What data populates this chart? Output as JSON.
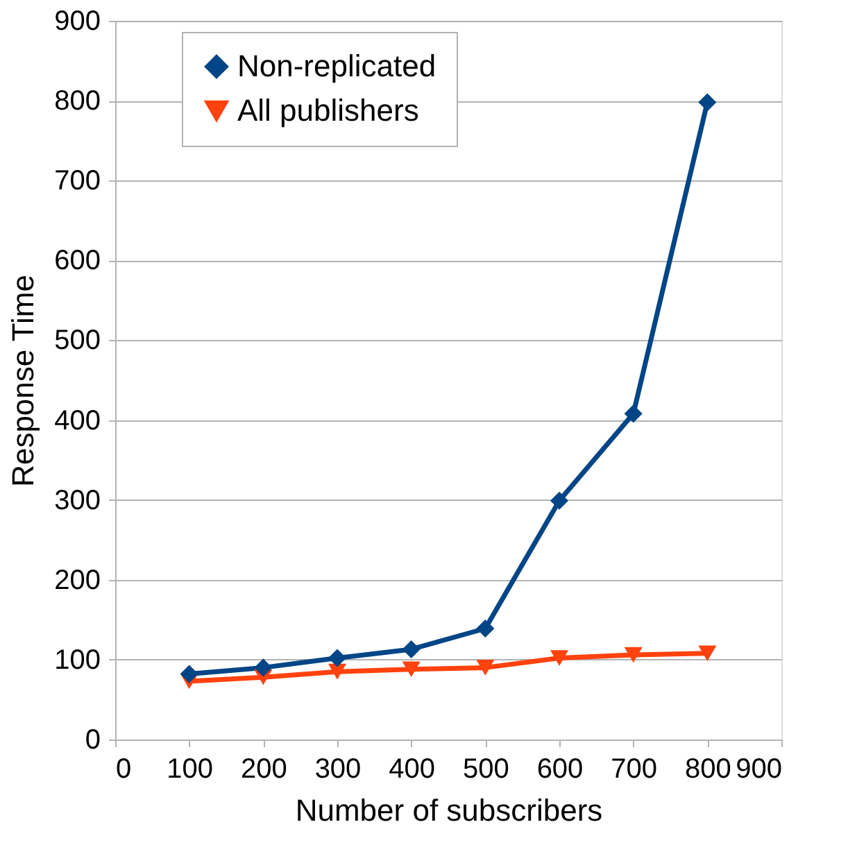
{
  "chart_data": {
    "type": "line",
    "xlabel": "Number of subscribers",
    "ylabel": "Response Time",
    "x": [
      100,
      200,
      300,
      400,
      500,
      600,
      700,
      800
    ],
    "series": [
      {
        "name": "Non-replicated",
        "color": "#004586",
        "marker": "diamond",
        "values": [
          82,
          90,
          102,
          113,
          139,
          299,
          408,
          798
        ]
      },
      {
        "name": "All publishers",
        "color": "#ff420e",
        "marker": "triangle-down",
        "values": [
          73,
          78,
          85,
          88,
          90,
          102,
          106,
          108
        ]
      }
    ],
    "xlim": [
      0,
      900
    ],
    "xticks": [
      0,
      100,
      200,
      300,
      400,
      500,
      600,
      700,
      800,
      900
    ],
    "ylim": [
      0,
      900
    ],
    "yticks": [
      0,
      100,
      200,
      300,
      400,
      500,
      600,
      700,
      800,
      900
    ],
    "grid": "y",
    "legend": "top",
    "line_style": "solid"
  }
}
